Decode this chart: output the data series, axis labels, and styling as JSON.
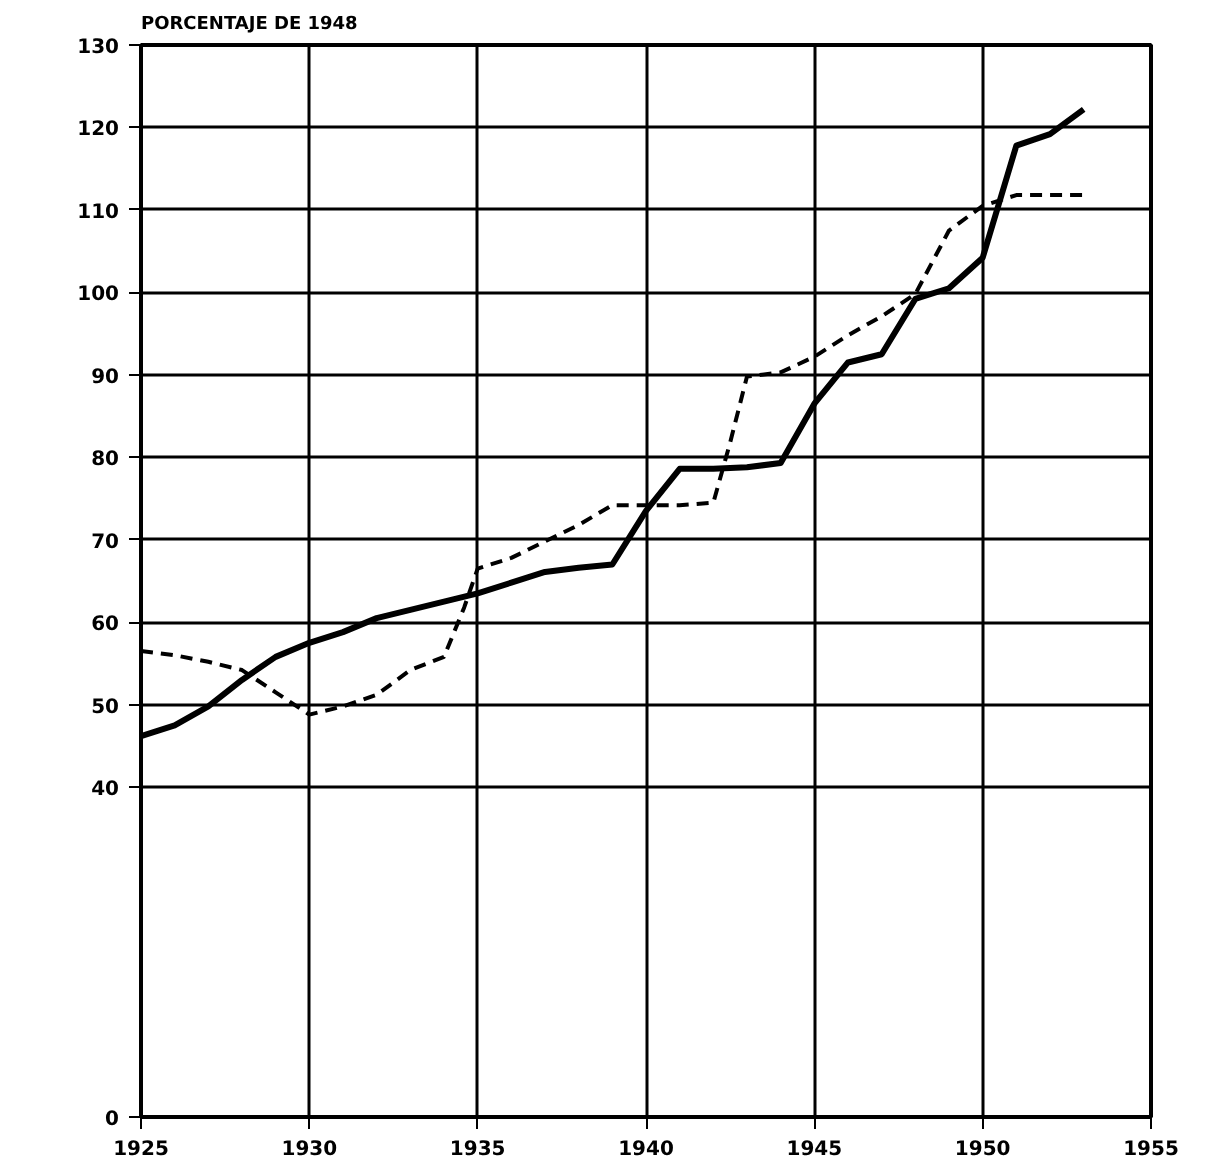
{
  "chart_data": {
    "type": "line",
    "ylabel": "PORCENTAJE DE 1948",
    "xlim": [
      1925,
      1955
    ],
    "xticks": [
      1925,
      1930,
      1935,
      1940,
      1945,
      1950,
      1955
    ],
    "ylim": [
      0,
      130
    ],
    "yticks": [
      0,
      40,
      50,
      60,
      70,
      80,
      90,
      100,
      110,
      120,
      130
    ],
    "grid": true,
    "series": [
      {
        "color": "#000000",
        "line_style": "solid",
        "x": [
          1925,
          1926,
          1927,
          1928,
          1929,
          1930,
          1931,
          1932,
          1933,
          1934,
          1935,
          1936,
          1937,
          1938,
          1939,
          1940,
          1941,
          1942,
          1943,
          1944,
          1945,
          1946,
          1947,
          1948,
          1949,
          1950,
          1951,
          1952,
          1953
        ],
        "values": [
          46.2,
          47.5,
          49.8,
          53,
          55.8,
          57.5,
          58.8,
          60.5,
          61.5,
          62.5,
          63.5,
          64.8,
          66.1,
          66.6,
          67,
          73.5,
          78.6,
          78.6,
          78.8,
          79.3,
          86.5,
          91.5,
          92.5,
          99.2,
          100.5,
          104.2,
          117.8,
          119.2,
          122.2
        ]
      },
      {
        "color": "#000000",
        "line_style": "dashed",
        "x": [
          1925,
          1926,
          1927,
          1928,
          1929,
          1930,
          1931,
          1932,
          1933,
          1934,
          1934.6,
          1935,
          1936,
          1937,
          1938,
          1939,
          1940,
          1941,
          1942,
          1942.5,
          1943,
          1944,
          1945,
          1946,
          1947,
          1948,
          1949,
          1950,
          1951,
          1952,
          1953
        ],
        "values": [
          56.5,
          56,
          55.2,
          54.2,
          51.5,
          48.8,
          49.8,
          51.2,
          54.2,
          55.8,
          61.8,
          66.5,
          67.8,
          69.8,
          71.8,
          74.2,
          74.2,
          74.2,
          74.5,
          81.8,
          89.8,
          90.3,
          92.2,
          94.8,
          97.1,
          99.8,
          107.5,
          110.5,
          111.8,
          111.8,
          111.8
        ]
      }
    ]
  }
}
